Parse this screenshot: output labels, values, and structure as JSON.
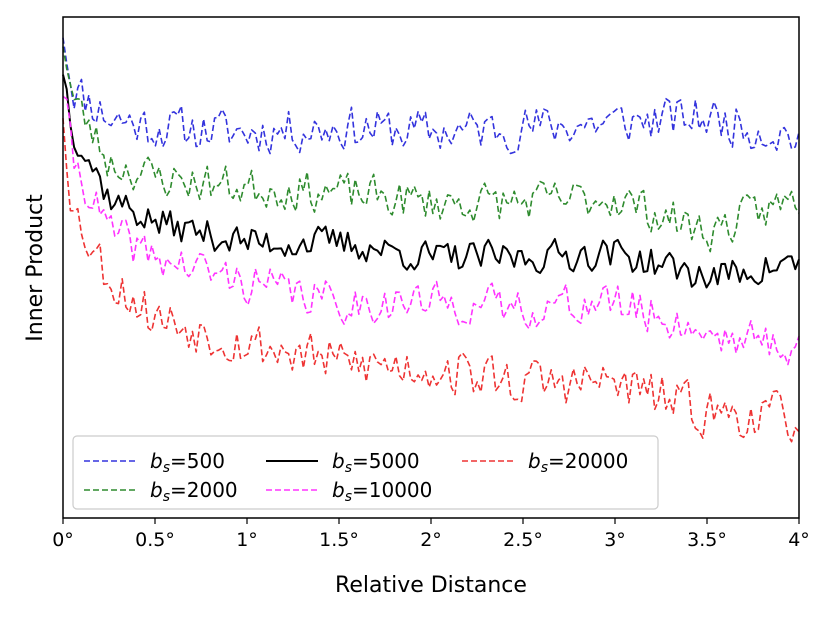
{
  "chart_data": {
    "type": "line",
    "xlabel": "Relative Distance",
    "ylabel": "Inner Product",
    "xlim": [
      0,
      4
    ],
    "ylim": [
      0,
      1
    ],
    "x_ticks": [
      0,
      0.5,
      1,
      1.5,
      2,
      2.5,
      3,
      3.5,
      4
    ],
    "x_tick_labels": [
      "0°",
      "0.5°",
      "1°",
      "1.5°",
      "2°",
      "2.5°",
      "3°",
      "3.5°",
      "4°"
    ],
    "y_ticks_visible": false,
    "grid": false,
    "legend_position": "lower-left",
    "legend_columns": 3,
    "series": [
      {
        "name": "b_s=500",
        "label_base": "b",
        "label_sub": "s",
        "label_value": "=500",
        "color": "#3333dd",
        "dash": "dashed",
        "anchors": [
          [
            0,
            0.98
          ],
          [
            0.05,
            0.86
          ],
          [
            0.25,
            0.8
          ],
          [
            0.5,
            0.78
          ],
          [
            1,
            0.77
          ],
          [
            1.5,
            0.78
          ],
          [
            2,
            0.77
          ],
          [
            2.5,
            0.78
          ],
          [
            3,
            0.79
          ],
          [
            3.5,
            0.8
          ],
          [
            4,
            0.76
          ]
        ],
        "amplitude": 0.055,
        "seed": 11
      },
      {
        "name": "b_s=2000",
        "label_base": "b",
        "label_sub": "s",
        "label_value": "=2000",
        "color": "#2e8b2e",
        "dash": "dashed",
        "anchors": [
          [
            0,
            0.96
          ],
          [
            0.05,
            0.84
          ],
          [
            0.25,
            0.71
          ],
          [
            0.5,
            0.68
          ],
          [
            1,
            0.66
          ],
          [
            1.5,
            0.65
          ],
          [
            2,
            0.63
          ],
          [
            2.5,
            0.63
          ],
          [
            3,
            0.64
          ],
          [
            3.5,
            0.57
          ],
          [
            4,
            0.64
          ]
        ],
        "amplitude": 0.05,
        "seed": 23
      },
      {
        "name": "b_s=5000",
        "label_base": "b",
        "label_sub": "s",
        "label_value": "=5000",
        "color": "#000000",
        "dash": "solid",
        "anchors": [
          [
            0,
            0.9
          ],
          [
            0.05,
            0.78
          ],
          [
            0.25,
            0.64
          ],
          [
            0.5,
            0.59
          ],
          [
            1,
            0.55
          ],
          [
            1.5,
            0.55
          ],
          [
            2,
            0.52
          ],
          [
            2.5,
            0.52
          ],
          [
            3,
            0.53
          ],
          [
            3.5,
            0.48
          ],
          [
            4,
            0.51
          ]
        ],
        "amplitude": 0.04,
        "seed": 37
      },
      {
        "name": "b_s=10000",
        "label_base": "b",
        "label_sub": "s",
        "label_value": "=10000",
        "color": "#ff33ff",
        "dash": "dashed",
        "anchors": [
          [
            0,
            0.86
          ],
          [
            0.05,
            0.72
          ],
          [
            0.25,
            0.57
          ],
          [
            0.5,
            0.52
          ],
          [
            1,
            0.47
          ],
          [
            1.5,
            0.43
          ],
          [
            2,
            0.43
          ],
          [
            2.5,
            0.42
          ],
          [
            3,
            0.43
          ],
          [
            3.5,
            0.37
          ],
          [
            4,
            0.34
          ]
        ],
        "amplitude": 0.05,
        "seed": 41
      },
      {
        "name": "b_s=20000",
        "label_base": "b",
        "label_sub": "s",
        "label_value": "=20000",
        "color": "#ee3333",
        "dash": "dashed",
        "anchors": [
          [
            0,
            0.82
          ],
          [
            0.05,
            0.62
          ],
          [
            0.25,
            0.48
          ],
          [
            0.5,
            0.4
          ],
          [
            1,
            0.35
          ],
          [
            1.5,
            0.31
          ],
          [
            2,
            0.3
          ],
          [
            2.5,
            0.27
          ],
          [
            3,
            0.27
          ],
          [
            3.5,
            0.21
          ],
          [
            4,
            0.2
          ]
        ],
        "amplitude": 0.06,
        "seed": 53
      }
    ],
    "points_per_series": 200
  }
}
